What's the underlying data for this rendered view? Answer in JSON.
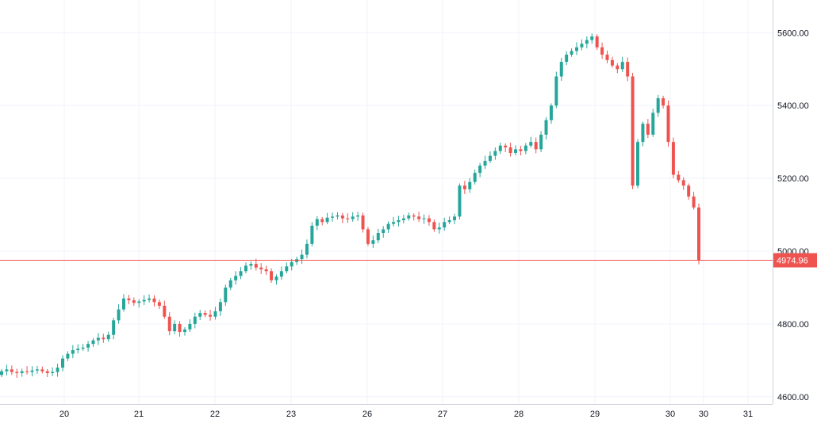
{
  "colors": {
    "up": "#26a69a",
    "down": "#ef5350",
    "grid": "#f0f3fa",
    "axis_line": "#cfd3dc",
    "price_line": "#ef5350",
    "price_label_bg": "#ef5350",
    "price_label_text": "#ffffff"
  },
  "chart_data": {
    "type": "candlestick",
    "title": "",
    "xlabel": "",
    "ylabel": "",
    "ylim": [
      4580,
      5690
    ],
    "y_ticks": [
      "4600.00",
      "4800.00",
      "5000.00",
      "5200.00",
      "5400.00",
      "5600.00"
    ],
    "x_ticks": [
      "20",
      "21",
      "22",
      "23",
      "26",
      "27",
      "28",
      "29",
      "30",
      "30",
      "31"
    ],
    "grid": true,
    "current_price": "4974.96",
    "series": [
      {
        "values": [
          [
            4660,
            4670
          ],
          [
            4670,
            4675
          ],
          [
            4675,
            4668
          ],
          [
            4668,
            4665
          ],
          [
            4665,
            4670
          ],
          [
            4670,
            4668
          ],
          [
            4668,
            4672
          ],
          [
            4672,
            4675
          ],
          [
            4675,
            4670
          ],
          [
            4670,
            4665
          ],
          [
            4665,
            4668
          ],
          [
            4668,
            4680
          ],
          [
            4680,
            4705
          ],
          [
            4705,
            4718
          ],
          [
            4718,
            4728
          ],
          [
            4728,
            4732
          ],
          [
            4732,
            4735
          ],
          [
            4735,
            4745
          ],
          [
            4745,
            4755
          ],
          [
            4755,
            4762
          ],
          [
            4762,
            4758
          ],
          [
            4758,
            4770
          ],
          [
            4770,
            4810
          ],
          [
            4810,
            4840
          ],
          [
            4840,
            4870
          ],
          [
            4870,
            4865
          ],
          [
            4865,
            4858
          ],
          [
            4858,
            4862
          ],
          [
            4862,
            4866
          ],
          [
            4866,
            4870
          ],
          [
            4870,
            4860
          ],
          [
            4860,
            4850
          ],
          [
            4850,
            4820
          ],
          [
            4820,
            4780
          ],
          [
            4780,
            4800
          ],
          [
            4800,
            4778
          ],
          [
            4778,
            4785
          ],
          [
            4785,
            4800
          ],
          [
            4800,
            4820
          ],
          [
            4820,
            4830
          ],
          [
            4830,
            4825
          ],
          [
            4825,
            4820
          ],
          [
            4820,
            4835
          ],
          [
            4835,
            4860
          ],
          [
            4860,
            4900
          ],
          [
            4900,
            4920
          ],
          [
            4920,
            4932
          ],
          [
            4932,
            4945
          ],
          [
            4945,
            4960
          ],
          [
            4960,
            4965
          ],
          [
            4965,
            4955
          ],
          [
            4955,
            4950
          ],
          [
            4950,
            4945
          ],
          [
            4945,
            4920
          ],
          [
            4920,
            4930
          ],
          [
            4930,
            4945
          ],
          [
            4945,
            4958
          ],
          [
            4958,
            4970
          ],
          [
            4970,
            4978
          ],
          [
            4978,
            4990
          ],
          [
            4990,
            5020
          ],
          [
            5020,
            5070
          ],
          [
            5070,
            5088
          ],
          [
            5088,
            5080
          ],
          [
            5080,
            5092
          ],
          [
            5092,
            5095
          ],
          [
            5095,
            5098
          ],
          [
            5098,
            5090
          ],
          [
            5090,
            5088
          ],
          [
            5088,
            5095
          ],
          [
            5095,
            5098
          ],
          [
            5098,
            5060
          ],
          [
            5060,
            5020
          ],
          [
            5020,
            5030
          ],
          [
            5030,
            5050
          ],
          [
            5050,
            5060
          ],
          [
            5060,
            5075
          ],
          [
            5075,
            5080
          ],
          [
            5080,
            5085
          ],
          [
            5085,
            5090
          ],
          [
            5090,
            5098
          ],
          [
            5098,
            5095
          ],
          [
            5095,
            5088
          ],
          [
            5088,
            5090
          ],
          [
            5090,
            5080
          ],
          [
            5080,
            5060
          ],
          [
            5060,
            5065
          ],
          [
            5065,
            5080
          ],
          [
            5080,
            5085
          ],
          [
            5085,
            5095
          ],
          [
            5095,
            5180
          ],
          [
            5180,
            5170
          ],
          [
            5170,
            5190
          ],
          [
            5190,
            5215
          ],
          [
            5215,
            5235
          ],
          [
            5235,
            5248
          ],
          [
            5248,
            5262
          ],
          [
            5262,
            5275
          ],
          [
            5275,
            5290
          ],
          [
            5290,
            5285
          ],
          [
            5285,
            5270
          ],
          [
            5270,
            5280
          ],
          [
            5280,
            5275
          ],
          [
            5275,
            5290
          ],
          [
            5290,
            5300
          ],
          [
            5300,
            5280
          ],
          [
            5280,
            5320
          ],
          [
            5320,
            5360
          ],
          [
            5360,
            5400
          ],
          [
            5400,
            5480
          ],
          [
            5480,
            5520
          ],
          [
            5520,
            5540
          ],
          [
            5540,
            5550
          ],
          [
            5550,
            5560
          ],
          [
            5560,
            5570
          ],
          [
            5570,
            5580
          ],
          [
            5580,
            5590
          ],
          [
            5590,
            5560
          ],
          [
            5560,
            5540
          ],
          [
            5540,
            5525
          ],
          [
            5525,
            5510
          ],
          [
            5510,
            5500
          ],
          [
            5500,
            5520
          ],
          [
            5520,
            5480
          ],
          [
            5480,
            5180
          ],
          [
            5180,
            5300
          ],
          [
            5300,
            5350
          ],
          [
            5350,
            5320
          ],
          [
            5320,
            5380
          ],
          [
            5380,
            5420
          ],
          [
            5420,
            5400
          ],
          [
            5400,
            5300
          ],
          [
            5300,
            5210
          ],
          [
            5210,
            5195
          ],
          [
            5195,
            5180
          ],
          [
            5180,
            5150
          ],
          [
            5150,
            5120
          ],
          [
            5120,
            4974.96
          ]
        ]
      }
    ]
  }
}
